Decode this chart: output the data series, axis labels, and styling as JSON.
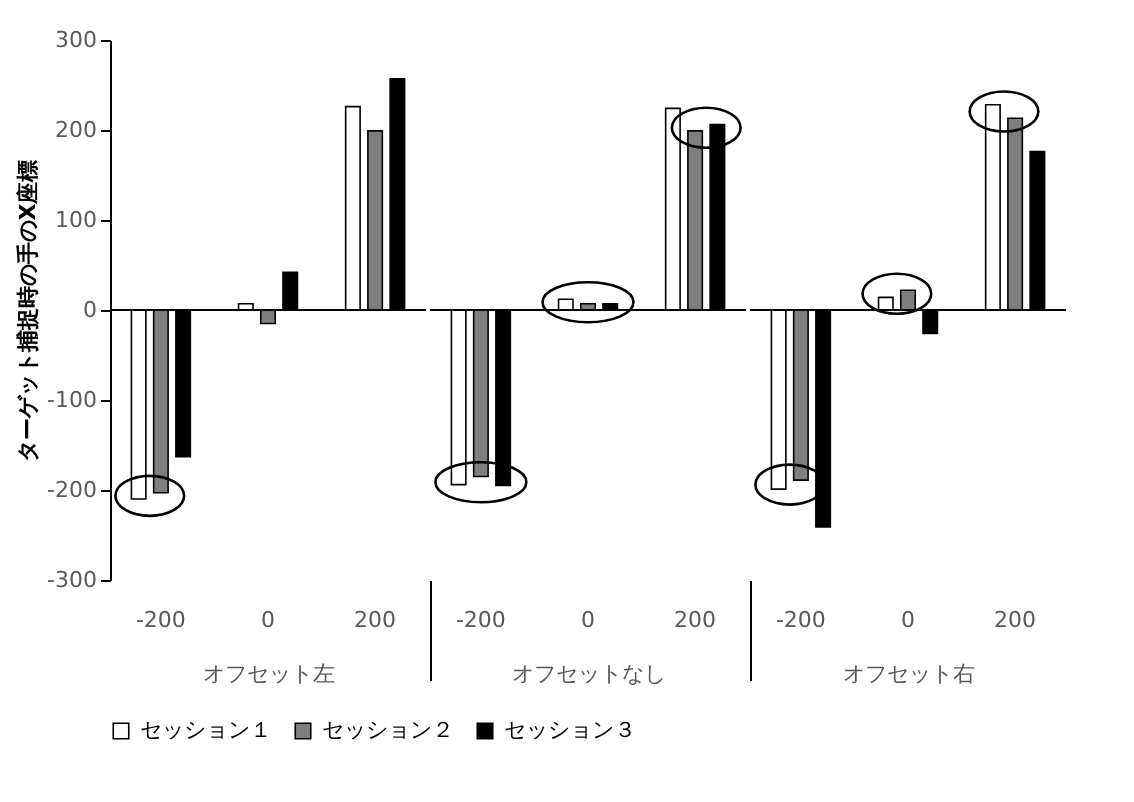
{
  "chart_data": [
    {
      "type": "bar",
      "categories": [
        "-200",
        "0",
        "200"
      ],
      "xlabel": "オフセット左",
      "ylabel": "ターゲット捕捉時の手のX座標",
      "ylim": [
        -300,
        300
      ],
      "yticks": [
        -300,
        -200,
        -100,
        0,
        100,
        200,
        300
      ],
      "legend": "bottom",
      "ref_lines": [
        {
          "axis": "y",
          "value": 0
        }
      ],
      "series": [
        {
          "name": "セッション１",
          "color": "#ffffff",
          "values": [
            -210,
            7,
            226
          ]
        },
        {
          "name": "セッション２",
          "color": "#7f7f7f",
          "values": [
            -203,
            -15,
            199
          ]
        },
        {
          "name": "セッション３",
          "color": "#000000",
          "values": [
            -163,
            42,
            257
          ]
        }
      ]
    },
    {
      "type": "bar",
      "categories": [
        "-200",
        "0",
        "200"
      ],
      "xlabel": "オフセットなし",
      "ylim": [
        -300,
        300
      ],
      "yticks": [
        -300,
        -200,
        -100,
        0,
        100,
        200,
        300
      ],
      "tick_labels": "x",
      "ref_lines": [
        {
          "axis": "y",
          "value": 0
        }
      ],
      "series": [
        {
          "name": "セッション１",
          "color": "#ffffff",
          "values": [
            -194,
            12,
            224
          ]
        },
        {
          "name": "セッション２",
          "color": "#7f7f7f",
          "values": [
            -185,
            7,
            199
          ]
        },
        {
          "name": "セッション３",
          "color": "#000000",
          "values": [
            -195,
            7,
            206
          ]
        }
      ]
    },
    {
      "type": "bar",
      "categories": [
        "-200",
        "0",
        "200"
      ],
      "xlabel": "オフセット右",
      "ylim": [
        -300,
        300
      ],
      "yticks": [
        -300,
        -200,
        -100,
        0,
        100,
        200,
        300
      ],
      "tick_labels": "x",
      "ref_lines": [
        {
          "axis": "y",
          "value": 0
        }
      ],
      "series": [
        {
          "name": "セッション１",
          "color": "#ffffff",
          "values": [
            -199,
            14,
            228
          ]
        },
        {
          "name": "セッション２",
          "color": "#7f7f7f",
          "values": [
            -189,
            22,
            213
          ]
        },
        {
          "name": "セッション３",
          "color": "#000000",
          "values": [
            -241,
            -26,
            176
          ]
        }
      ]
    }
  ]
}
